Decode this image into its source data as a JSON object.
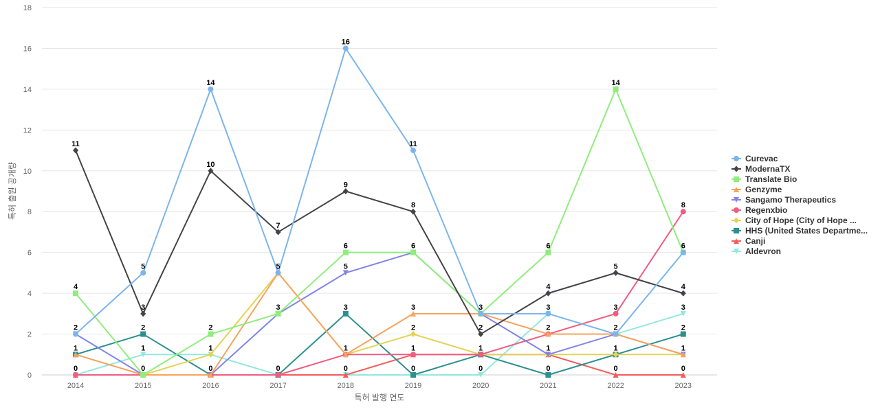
{
  "chart_data": {
    "type": "line",
    "title": "",
    "xlabel": "특허 발행 연도",
    "ylabel": "특허 출원 공개량",
    "ylim": [
      0,
      18
    ],
    "yticks": [
      0,
      2,
      4,
      6,
      8,
      10,
      12,
      14,
      16,
      18
    ],
    "categories": [
      "2014",
      "2015",
      "2016",
      "2017",
      "2018",
      "2019",
      "2020",
      "2021",
      "2022",
      "2023"
    ],
    "grid": true,
    "legend_position": "right",
    "series": [
      {
        "name": "Curevac",
        "color": "#7cb5ec",
        "marker": "circle",
        "values": [
          2,
          5,
          14,
          5,
          16,
          11,
          3,
          3,
          2,
          6
        ]
      },
      {
        "name": "ModernaTX",
        "color": "#434348",
        "marker": "diamond",
        "values": [
          11,
          3,
          10,
          7,
          9,
          8,
          2,
          4,
          5,
          4
        ]
      },
      {
        "name": "Translate Bio",
        "color": "#90ed7d",
        "marker": "square",
        "values": [
          4,
          0,
          2,
          3,
          6,
          6,
          3,
          6,
          14,
          6
        ]
      },
      {
        "name": "Genzyme",
        "color": "#f7a35c",
        "marker": "triangle",
        "values": [
          1,
          0,
          0,
          5,
          1,
          3,
          3,
          2,
          2,
          1
        ]
      },
      {
        "name": "Sangamo Therapeutics",
        "color": "#8085e9",
        "marker": "triangle-down",
        "values": [
          2,
          0,
          0,
          3,
          5,
          6,
          3,
          1,
          2,
          1
        ]
      },
      {
        "name": "Regenxbio",
        "color": "#f15c80",
        "marker": "circle",
        "values": [
          0,
          0,
          0,
          0,
          1,
          1,
          1,
          2,
          3,
          8
        ]
      },
      {
        "name": "City of Hope (City of Hope ...",
        "color": "#e4d354",
        "marker": "diamond",
        "values": [
          0,
          0,
          1,
          5,
          1,
          2,
          1,
          1,
          1,
          1
        ]
      },
      {
        "name": "HHS (United States Departme...",
        "color": "#2b908f",
        "marker": "square",
        "values": [
          1,
          2,
          0,
          0,
          3,
          0,
          1,
          0,
          1,
          2
        ]
      },
      {
        "name": "Canji",
        "color": "#f45b5b",
        "marker": "triangle",
        "values": [
          0,
          0,
          0,
          0,
          0,
          1,
          1,
          1,
          0,
          0
        ]
      },
      {
        "name": "Aldevron",
        "color": "#91e8e1",
        "marker": "triangle-down",
        "values": [
          0,
          1,
          1,
          0,
          0,
          0,
          0,
          3,
          2,
          3
        ]
      }
    ],
    "data_labels": [
      {
        "category": "2014",
        "values": [
          4,
          2,
          1,
          0
        ],
        "top": 11
      },
      {
        "category": "2015",
        "values": [
          5,
          3,
          2,
          1,
          0
        ]
      },
      {
        "category": "2016",
        "values": [
          14,
          10,
          2,
          1,
          0
        ]
      },
      {
        "category": "2017",
        "values": [
          7,
          5,
          3,
          0
        ]
      },
      {
        "category": "2018",
        "values": [
          16,
          9,
          6,
          5,
          3,
          1,
          0
        ]
      },
      {
        "category": "2019",
        "values": [
          11,
          8,
          6,
          3,
          2,
          1,
          0
        ]
      },
      {
        "category": "2020",
        "values": [
          3,
          2,
          1,
          0
        ]
      },
      {
        "category": "2021",
        "values": [
          6,
          4,
          3,
          2,
          1,
          0
        ]
      },
      {
        "category": "2022",
        "values": [
          14,
          5,
          3,
          2,
          1,
          0
        ]
      },
      {
        "category": "2023",
        "values": [
          8,
          6,
          4,
          3,
          2,
          1,
          0
        ]
      }
    ]
  }
}
